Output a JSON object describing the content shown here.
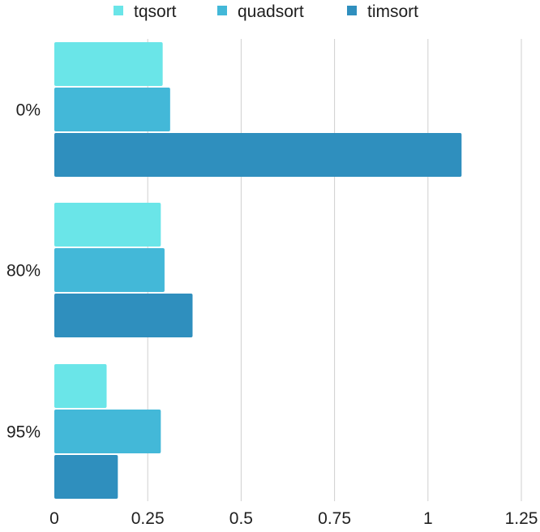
{
  "chart_data": {
    "type": "bar",
    "orientation": "horizontal",
    "categories": [
      "0%",
      "80%",
      "95%"
    ],
    "series": [
      {
        "name": "tqsort",
        "color": "#6ae5e8",
        "values": [
          0.29,
          0.285,
          0.14
        ]
      },
      {
        "name": "quadsort",
        "color": "#43b8d8",
        "values": [
          0.31,
          0.295,
          0.285
        ]
      },
      {
        "name": "timsort",
        "color": "#2f8fbe",
        "values": [
          1.09,
          0.37,
          0.17
        ]
      }
    ],
    "xlim": [
      0,
      1.25
    ],
    "x_ticks": [
      0,
      0.25,
      0.5,
      0.75,
      1,
      1.25
    ],
    "x_tick_labels": [
      "0",
      "0.25",
      "0.5",
      "0.75",
      "1",
      "1.25"
    ],
    "title": "",
    "xlabel": "",
    "ylabel": "",
    "grid": true,
    "legend_position": "top-center"
  }
}
